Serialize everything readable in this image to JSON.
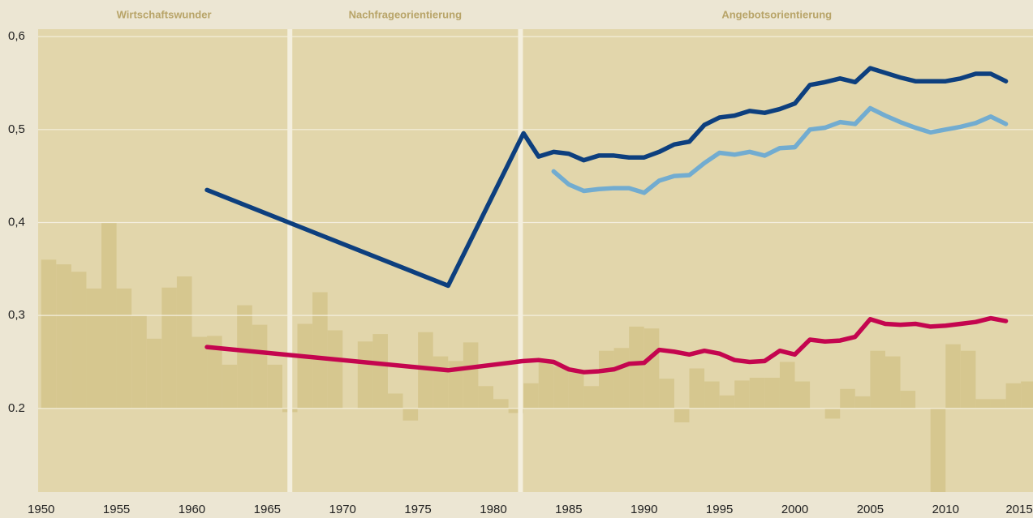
{
  "chart_data": {
    "type": "line",
    "periods": [
      "Wirtschaftswunder",
      "Nachfrageorientierung",
      "Angebotsorientierung"
    ],
    "period_breaks": [
      1966.5,
      1981.8
    ],
    "xlim": [
      1949.8,
      2015.8
    ],
    "xticks": [
      1950,
      1955,
      1960,
      1965,
      1970,
      1975,
      1980,
      1985,
      1990,
      1995,
      2000,
      2005,
      2010,
      2015
    ],
    "ylim": [
      0.11,
      0.608
    ],
    "yticks": [
      {
        "value": 0.2,
        "label": "0.2"
      },
      {
        "value": 0.3,
        "label": "0,3"
      },
      {
        "value": 0.4,
        "label": "0,4"
      },
      {
        "value": 0.5,
        "label": "0,5"
      },
      {
        "value": 0.6,
        "label": "0,6"
      }
    ],
    "grid": true,
    "bar_baseline": 0.2,
    "bar_color": "#d6c78f",
    "bar_years": [
      1950,
      1951,
      1952,
      1953,
      1954,
      1955,
      1956,
      1957,
      1958,
      1959,
      1960,
      1961,
      1962,
      1963,
      1964,
      1965,
      1966,
      1967,
      1968,
      1969,
      1970,
      1971,
      1972,
      1973,
      1974,
      1975,
      1976,
      1977,
      1978,
      1979,
      1980,
      1981,
      1982,
      1983,
      1984,
      1985,
      1986,
      1987,
      1988,
      1989,
      1990,
      1991,
      1992,
      1993,
      1994,
      1995,
      1996,
      1997,
      1998,
      1999,
      2000,
      2001,
      2002,
      2003,
      2004,
      2005,
      2006,
      2007,
      2008,
      2009,
      2010,
      2011,
      2012,
      2013,
      2014,
      2015
    ],
    "bar_values": [
      0.36,
      0.355,
      0.347,
      0.329,
      0.4,
      0.329,
      0.3,
      0.275,
      0.33,
      0.342,
      0.277,
      0.278,
      0.247,
      0.311,
      0.29,
      0.247,
      0.196,
      0.291,
      0.325,
      0.284,
      0.2,
      0.272,
      0.28,
      0.216,
      0.187,
      0.282,
      0.256,
      0.251,
      0.271,
      0.224,
      0.21,
      0.195,
      0.227,
      0.25,
      0.245,
      0.24,
      0.224,
      0.262,
      0.265,
      0.288,
      0.286,
      0.232,
      0.185,
      0.243,
      0.229,
      0.214,
      0.23,
      0.233,
      0.233,
      0.25,
      0.229,
      0.2,
      0.189,
      0.221,
      0.213,
      0.262,
      0.256,
      0.219,
      0.2,
      0.11,
      0.269,
      0.262,
      0.21,
      0.21,
      0.227,
      0.229
    ],
    "series": [
      {
        "color": "#0d3f7e",
        "x": [
          1961,
          1977,
          1982,
          1983,
          1984,
          1985,
          1986,
          1987,
          1988,
          1989,
          1990,
          1991,
          1992,
          1993,
          1994,
          1995,
          1996,
          1997,
          1998,
          1999,
          2000,
          2001,
          2002,
          2003,
          2004,
          2005,
          2006,
          2007,
          2008,
          2009,
          2010,
          2011,
          2012,
          2013,
          2014
        ],
        "values": [
          0.435,
          0.332,
          0.496,
          0.471,
          0.476,
          0.474,
          0.467,
          0.472,
          0.472,
          0.47,
          0.47,
          0.476,
          0.484,
          0.487,
          0.505,
          0.513,
          0.515,
          0.52,
          0.518,
          0.522,
          0.528,
          0.548,
          0.551,
          0.555,
          0.551,
          0.566,
          0.561,
          0.556,
          0.552,
          0.552,
          0.552,
          0.555,
          0.56,
          0.56,
          0.552
        ]
      },
      {
        "color": "#72acd0",
        "x": [
          1984,
          1985,
          1986,
          1987,
          1988,
          1989,
          1990,
          1991,
          1992,
          1993,
          1994,
          1995,
          1996,
          1997,
          1998,
          1999,
          2000,
          2001,
          2002,
          2003,
          2004,
          2005,
          2006,
          2007,
          2008,
          2009,
          2010,
          2011,
          2012,
          2013,
          2014
        ],
        "values": [
          0.455,
          0.441,
          0.434,
          0.436,
          0.437,
          0.437,
          0.432,
          0.445,
          0.45,
          0.451,
          0.464,
          0.475,
          0.473,
          0.476,
          0.472,
          0.48,
          0.481,
          0.5,
          0.502,
          0.508,
          0.506,
          0.523,
          0.515,
          0.508,
          0.502,
          0.497,
          0.5,
          0.503,
          0.507,
          0.514,
          0.506
        ]
      },
      {
        "color": "#c4054f",
        "x": [
          1961,
          1977,
          1982,
          1983,
          1984,
          1985,
          1986,
          1987,
          1988,
          1989,
          1990,
          1991,
          1992,
          1993,
          1994,
          1995,
          1996,
          1997,
          1998,
          1999,
          2000,
          2001,
          2002,
          2003,
          2004,
          2005,
          2006,
          2007,
          2008,
          2009,
          2010,
          2011,
          2012,
          2013,
          2014
        ],
        "values": [
          0.266,
          0.241,
          0.251,
          0.252,
          0.25,
          0.242,
          0.239,
          0.24,
          0.242,
          0.248,
          0.249,
          0.263,
          0.261,
          0.258,
          0.262,
          0.259,
          0.252,
          0.25,
          0.251,
          0.262,
          0.258,
          0.274,
          0.272,
          0.273,
          0.277,
          0.296,
          0.291,
          0.29,
          0.291,
          0.288,
          0.289,
          0.291,
          0.293,
          0.297,
          0.294
        ]
      }
    ]
  }
}
